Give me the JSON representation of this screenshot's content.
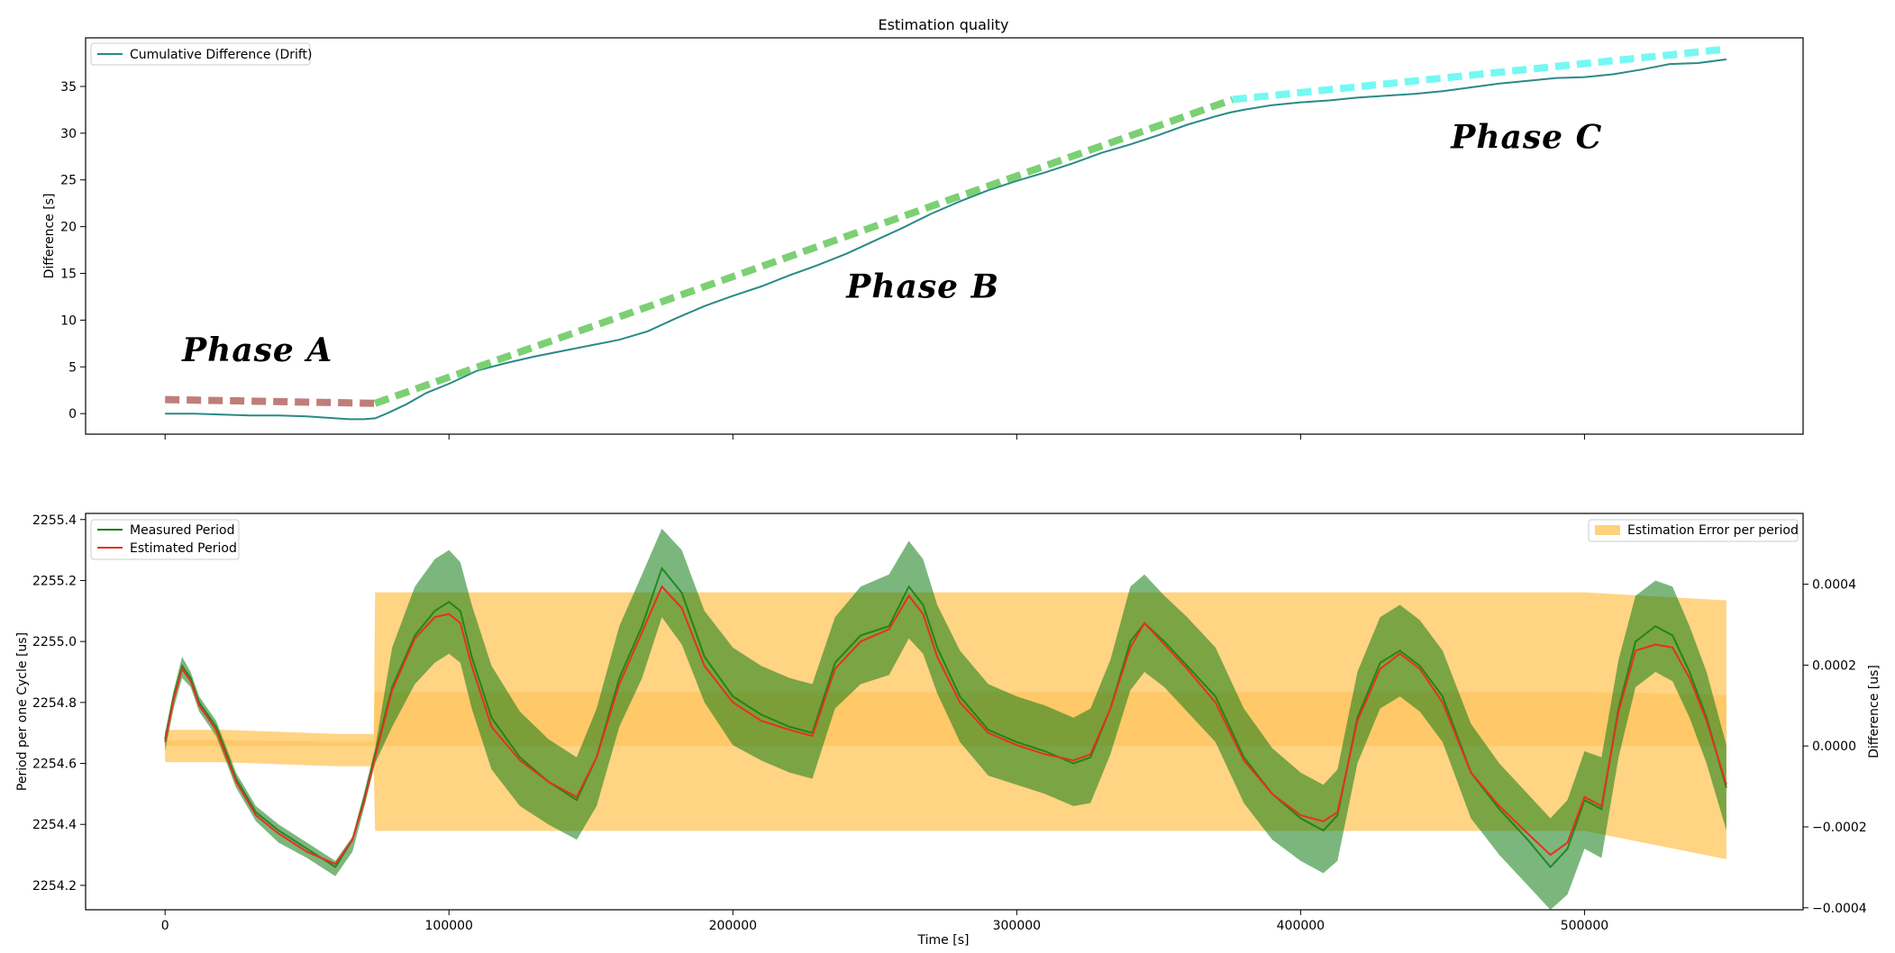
{
  "chart_data": [
    {
      "type": "line",
      "title": "Estimation quality",
      "xlabel": "",
      "ylabel": "Difference [s]",
      "xlim": [
        -28000,
        577000
      ],
      "ylim": [
        -2.2,
        40.2
      ],
      "x_ticks": [
        0,
        100000,
        200000,
        300000,
        400000,
        500000
      ],
      "y_ticks": [
        0,
        5,
        10,
        15,
        20,
        25,
        30,
        35
      ],
      "grid": false,
      "legend": "top-left",
      "series": [
        {
          "name": "Cumulative Difference (Drift)",
          "color": "#2a8a86",
          "style": "solid",
          "x": [
            0,
            10000,
            20000,
            30000,
            40000,
            50000,
            60000,
            65000,
            70000,
            74000,
            78000,
            85000,
            92000,
            100000,
            110000,
            120000,
            130000,
            140000,
            150000,
            160000,
            170000,
            180000,
            190000,
            200000,
            210000,
            220000,
            230000,
            240000,
            250000,
            260000,
            270000,
            280000,
            290000,
            300000,
            310000,
            320000,
            330000,
            340000,
            350000,
            360000,
            370000,
            375000,
            380000,
            390000,
            400000,
            410000,
            420000,
            430000,
            440000,
            450000,
            460000,
            470000,
            480000,
            490000,
            500000,
            510000,
            520000,
            530000,
            540000,
            550000
          ],
          "y": [
            0.0,
            0.0,
            -0.1,
            -0.2,
            -0.2,
            -0.3,
            -0.5,
            -0.6,
            -0.6,
            -0.5,
            0.0,
            1.0,
            2.2,
            3.2,
            4.6,
            5.4,
            6.1,
            6.7,
            7.3,
            7.9,
            8.8,
            10.2,
            11.5,
            12.6,
            13.6,
            14.8,
            15.9,
            17.1,
            18.5,
            19.9,
            21.4,
            22.7,
            23.9,
            24.9,
            25.8,
            26.8,
            27.9,
            28.8,
            29.8,
            30.9,
            31.8,
            32.2,
            32.5,
            33.0,
            33.3,
            33.5,
            33.8,
            34.0,
            34.2,
            34.5,
            34.9,
            35.3,
            35.6,
            35.9,
            36.0,
            36.3,
            36.8,
            37.4,
            37.5,
            37.9
          ]
        },
        {
          "name": "Phase A",
          "color": "#b8706a",
          "style": "dashed",
          "x": [
            0,
            74000
          ],
          "y": [
            1.5,
            1.1
          ]
        },
        {
          "name": "Phase B",
          "color": "#6ecb64",
          "style": "dashed",
          "x": [
            74000,
            376000
          ],
          "y": [
            1.1,
            33.6
          ]
        },
        {
          "name": "Phase C",
          "color": "#66f7f2",
          "style": "dashed",
          "x": [
            376000,
            550000
          ],
          "y": [
            33.6,
            39.0
          ]
        }
      ],
      "annotations": [
        {
          "text": "Phase A",
          "x": 6000,
          "y": 5.6
        },
        {
          "text": "Phase B",
          "x": 240000,
          "y": 12.4
        },
        {
          "text": "Phase C",
          "x": 453000,
          "y": 28.4
        }
      ]
    },
    {
      "type": "line",
      "title": "",
      "xlabel": "Time [s]",
      "ylabel": "Period per one Cycle [us]",
      "y2label": "Difference [us]",
      "xlim": [
        -28000,
        577000
      ],
      "ylim": [
        2254.12,
        2255.42
      ],
      "y2lim": [
        -0.000405,
        0.000575
      ],
      "x_ticks": [
        0,
        100000,
        200000,
        300000,
        400000,
        500000
      ],
      "y_ticks": [
        2254.2,
        2254.4,
        2254.6,
        2254.8,
        2255.0,
        2255.2,
        2255.4
      ],
      "y2_ticks": [
        -0.0004,
        -0.0002,
        0.0,
        0.0002,
        0.0004
      ],
      "grid": false,
      "legend": "top-left",
      "legend2": "top-right",
      "series": [
        {
          "name": "Measured Period",
          "color": "#0f7c12",
          "x": [
            0,
            3000,
            6000,
            9000,
            12000,
            18000,
            25000,
            32000,
            40000,
            50000,
            60000,
            66000,
            70000,
            74000,
            80000,
            88000,
            95000,
            100000,
            104000,
            108000,
            115000,
            125000,
            135000,
            145000,
            152000,
            160000,
            168000,
            175000,
            182000,
            190000,
            200000,
            210000,
            220000,
            228000,
            236000,
            245000,
            255000,
            262000,
            267000,
            272000,
            280000,
            290000,
            300000,
            310000,
            320000,
            326000,
            333000,
            340000,
            345000,
            352000,
            360000,
            370000,
            380000,
            390000,
            400000,
            408000,
            413000,
            420000,
            428000,
            435000,
            442000,
            450000,
            460000,
            470000,
            480000,
            488000,
            494000,
            500000,
            506000,
            512000,
            518000,
            525000,
            531000,
            537000,
            543000,
            550000
          ],
          "y": [
            2254.68,
            2254.82,
            2254.92,
            2254.88,
            2254.8,
            2254.72,
            2254.55,
            2254.44,
            2254.38,
            2254.32,
            2254.26,
            2254.35,
            2254.48,
            2254.63,
            2254.85,
            2255.02,
            2255.1,
            2255.13,
            2255.1,
            2254.95,
            2254.75,
            2254.62,
            2254.54,
            2254.48,
            2254.62,
            2254.88,
            2255.05,
            2255.24,
            2255.16,
            2254.95,
            2254.82,
            2254.76,
            2254.72,
            2254.7,
            2254.93,
            2255.02,
            2255.05,
            2255.18,
            2255.12,
            2254.98,
            2254.82,
            2254.71,
            2254.67,
            2254.64,
            2254.6,
            2254.62,
            2254.78,
            2255.0,
            2255.06,
            2255.0,
            2254.92,
            2254.82,
            2254.62,
            2254.5,
            2254.42,
            2254.38,
            2254.43,
            2254.75,
            2254.93,
            2254.97,
            2254.92,
            2254.82,
            2254.57,
            2254.45,
            2254.35,
            2254.26,
            2254.32,
            2254.48,
            2254.45,
            2254.78,
            2255.0,
            2255.05,
            2255.02,
            2254.9,
            2254.75,
            2254.52
          ],
          "band_upper": [
            2254.7,
            2254.84,
            2254.95,
            2254.9,
            2254.82,
            2254.74,
            2254.57,
            2254.46,
            2254.4,
            2254.34,
            2254.28,
            2254.36,
            2254.5,
            2254.65,
            2254.98,
            2255.18,
            2255.27,
            2255.3,
            2255.26,
            2255.12,
            2254.92,
            2254.77,
            2254.68,
            2254.62,
            2254.78,
            2255.05,
            2255.22,
            2255.37,
            2255.3,
            2255.1,
            2254.98,
            2254.92,
            2254.88,
            2254.86,
            2255.08,
            2255.18,
            2255.22,
            2255.33,
            2255.27,
            2255.12,
            2254.97,
            2254.86,
            2254.82,
            2254.79,
            2254.75,
            2254.78,
            2254.94,
            2255.18,
            2255.22,
            2255.15,
            2255.08,
            2254.98,
            2254.78,
            2254.65,
            2254.57,
            2254.53,
            2254.58,
            2254.9,
            2255.08,
            2255.12,
            2255.07,
            2254.97,
            2254.73,
            2254.6,
            2254.5,
            2254.42,
            2254.48,
            2254.64,
            2254.62,
            2254.94,
            2255.15,
            2255.2,
            2255.18,
            2255.05,
            2254.9,
            2254.66
          ],
          "band_lower": [
            2254.64,
            2254.78,
            2254.88,
            2254.85,
            2254.77,
            2254.69,
            2254.52,
            2254.41,
            2254.34,
            2254.29,
            2254.23,
            2254.31,
            2254.45,
            2254.6,
            2254.72,
            2254.86,
            2254.93,
            2254.96,
            2254.93,
            2254.78,
            2254.58,
            2254.46,
            2254.4,
            2254.35,
            2254.46,
            2254.72,
            2254.88,
            2255.08,
            2254.99,
            2254.8,
            2254.66,
            2254.61,
            2254.57,
            2254.55,
            2254.78,
            2254.86,
            2254.89,
            2255.01,
            2254.96,
            2254.83,
            2254.67,
            2254.56,
            2254.53,
            2254.5,
            2254.46,
            2254.47,
            2254.63,
            2254.84,
            2254.9,
            2254.85,
            2254.77,
            2254.67,
            2254.47,
            2254.35,
            2254.28,
            2254.24,
            2254.28,
            2254.6,
            2254.78,
            2254.82,
            2254.77,
            2254.67,
            2254.42,
            2254.3,
            2254.2,
            2254.12,
            2254.17,
            2254.32,
            2254.29,
            2254.62,
            2254.85,
            2254.9,
            2254.87,
            2254.75,
            2254.6,
            2254.38
          ]
        },
        {
          "name": "Estimated Period",
          "color": "#e8301e",
          "x": [
            0,
            3000,
            6000,
            9000,
            12000,
            18000,
            25000,
            32000,
            40000,
            50000,
            60000,
            66000,
            70000,
            74000,
            80000,
            88000,
            95000,
            100000,
            104000,
            108000,
            115000,
            125000,
            135000,
            145000,
            152000,
            160000,
            168000,
            175000,
            182000,
            190000,
            200000,
            210000,
            220000,
            228000,
            236000,
            245000,
            255000,
            262000,
            267000,
            272000,
            280000,
            290000,
            300000,
            310000,
            320000,
            326000,
            333000,
            340000,
            345000,
            352000,
            360000,
            370000,
            380000,
            390000,
            400000,
            408000,
            413000,
            420000,
            428000,
            435000,
            442000,
            450000,
            460000,
            470000,
            480000,
            488000,
            494000,
            500000,
            506000,
            512000,
            518000,
            525000,
            531000,
            537000,
            543000,
            550000
          ],
          "y": [
            2254.67,
            2254.81,
            2254.91,
            2254.87,
            2254.79,
            2254.71,
            2254.54,
            2254.43,
            2254.37,
            2254.31,
            2254.27,
            2254.35,
            2254.47,
            2254.62,
            2254.84,
            2255.01,
            2255.08,
            2255.09,
            2255.06,
            2254.92,
            2254.72,
            2254.61,
            2254.54,
            2254.49,
            2254.62,
            2254.86,
            2255.03,
            2255.18,
            2255.11,
            2254.92,
            2254.8,
            2254.74,
            2254.71,
            2254.69,
            2254.91,
            2255.0,
            2255.04,
            2255.15,
            2255.09,
            2254.95,
            2254.8,
            2254.7,
            2254.66,
            2254.63,
            2254.61,
            2254.63,
            2254.78,
            2254.98,
            2255.06,
            2254.99,
            2254.91,
            2254.8,
            2254.61,
            2254.5,
            2254.43,
            2254.41,
            2254.44,
            2254.74,
            2254.91,
            2254.96,
            2254.91,
            2254.8,
            2254.57,
            2254.46,
            2254.37,
            2254.3,
            2254.34,
            2254.49,
            2254.46,
            2254.77,
            2254.97,
            2254.99,
            2254.98,
            2254.88,
            2254.74,
            2254.53
          ]
        },
        {
          "name": "Estimation Error per period",
          "color": "#ffc65a",
          "axis": "right",
          "type": "area",
          "x": [
            0,
            20000,
            40000,
            60000,
            73500,
            74000,
            100000,
            150000,
            200000,
            250000,
            300000,
            350000,
            400000,
            450000,
            500000,
            550000
          ],
          "upper": [
            4e-05,
            4e-05,
            3.5e-05,
            3e-05,
            3e-05,
            0.00038,
            0.00038,
            0.00038,
            0.00038,
            0.00038,
            0.00038,
            0.00038,
            0.00038,
            0.00038,
            0.00038,
            0.00036
          ],
          "lower": [
            -4e-05,
            -4e-05,
            -4.5e-05,
            -5e-05,
            -5e-05,
            -0.00021,
            -0.00021,
            -0.00021,
            -0.00021,
            -0.00021,
            -0.00021,
            -0.00021,
            -0.00021,
            -0.00021,
            -0.00021,
            -0.00028
          ]
        }
      ]
    }
  ]
}
